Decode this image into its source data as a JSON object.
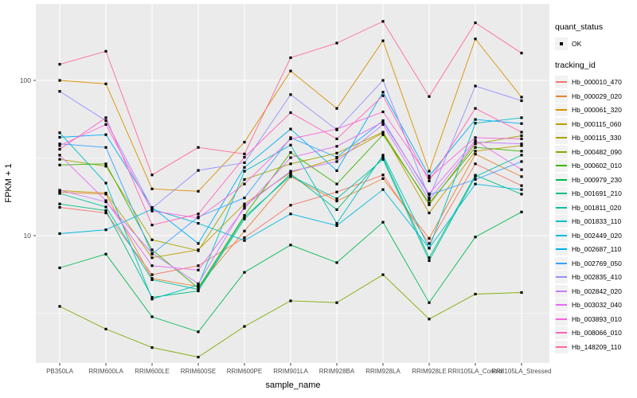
{
  "chart_data": {
    "type": "line",
    "title": "",
    "xlabel": "sample_name",
    "ylabel": "FPKM + 1",
    "y_scale": "log10",
    "y_ticks": [
      10,
      100
    ],
    "y_minor_ticks": [
      3.162,
      31.62,
      316.2
    ],
    "ylim": [
      1.4,
      320
    ],
    "grid": "on",
    "legend_position": "right",
    "x_categories": [
      "PB350LA",
      "RRIM600LA",
      "RRIM600LE",
      "RRIM600SE",
      "RRIM600PE",
      "RRIM901LA",
      "RRIM928BA",
      "RRIM928LA",
      "RRIM928LE",
      "RRII105LA_Control",
      "RRII105LA_Stressed"
    ],
    "point_marker": "black-square",
    "legend": {
      "quant_status_title": "quant_status",
      "quant_status_items": [
        {
          "label": "OK",
          "marker": "point",
          "color": "#000000"
        }
      ],
      "tracking_title": "tracking_id"
    },
    "series": [
      {
        "name": "Hb_000010_470",
        "color": "#F8766D",
        "values": [
          15.2,
          14.0,
          5.6,
          6.4,
          9.7,
          15.7,
          19.1,
          24.6,
          8.9,
          29.0,
          21.0
        ]
      },
      {
        "name": "Hb_000029_020",
        "color": "#EA8331",
        "values": [
          19.0,
          18.5,
          5.3,
          4.7,
          10.7,
          24.0,
          16.7,
          23.3,
          9.6,
          33.5,
          24.0
        ]
      },
      {
        "name": "Hb_000061_320",
        "color": "#D89000",
        "values": [
          100,
          95,
          20,
          19.3,
          40,
          115,
          66,
          180,
          26,
          185,
          78
        ]
      },
      {
        "name": "Hb_000115_060",
        "color": "#C09B00",
        "values": [
          19.5,
          18.8,
          7.2,
          8.1,
          16.0,
          25.5,
          31.5,
          46.0,
          14.0,
          35.0,
          38.0
        ]
      },
      {
        "name": "Hb_000115_330",
        "color": "#A3A500",
        "values": [
          31.0,
          28.0,
          9.4,
          8.0,
          23.0,
          29.0,
          34.0,
          46.4,
          15.8,
          39.0,
          44.0
        ]
      },
      {
        "name": "Hb_000482_090",
        "color": "#7CAE00",
        "values": [
          3.5,
          2.5,
          1.9,
          1.65,
          2.6,
          3.8,
          3.7,
          5.6,
          2.9,
          4.2,
          4.3
        ]
      },
      {
        "name": "Hb_000602_010",
        "color": "#39B600",
        "values": [
          28.5,
          29.0,
          8.1,
          4.6,
          13.5,
          34.3,
          21.5,
          44.7,
          16.2,
          37.0,
          35.0
        ]
      },
      {
        "name": "Hb_000979_230",
        "color": "#00BB4E",
        "values": [
          6.2,
          7.6,
          3.0,
          2.4,
          5.8,
          8.7,
          6.7,
          12.2,
          3.7,
          9.8,
          14.2
        ]
      },
      {
        "name": "Hb_001691_210",
        "color": "#00BF7D",
        "values": [
          16.0,
          14.5,
          4.0,
          4.4,
          12.8,
          25.0,
          14.7,
          32.0,
          7.2,
          24.5,
          18.5
        ]
      },
      {
        "name": "Hb_001811_020",
        "color": "#00C1A3",
        "values": [
          18.7,
          15.3,
          5.2,
          4.5,
          13.2,
          24.3,
          17.3,
          31.0,
          6.9,
          24.0,
          33.0
        ]
      },
      {
        "name": "Hb_001833_110",
        "color": "#00BFC4",
        "values": [
          46.0,
          21.8,
          3.9,
          4.8,
          26.0,
          38.3,
          12.0,
          33.0,
          8.3,
          53.0,
          57.5
        ]
      },
      {
        "name": "Hb_002449_020",
        "color": "#00BAE0",
        "values": [
          10.3,
          10.9,
          14.8,
          12.0,
          9.3,
          13.8,
          11.6,
          19.8,
          8.3,
          21.5,
          19.8
        ]
      },
      {
        "name": "Hb_002687_110",
        "color": "#00B0F6",
        "values": [
          43.0,
          44.7,
          15.2,
          8.9,
          27.5,
          48.6,
          26.2,
          84.0,
          24.2,
          56.0,
          52.7
        ]
      },
      {
        "name": "Hb_002769_050",
        "color": "#35A2FF",
        "values": [
          39.0,
          37.0,
          7.6,
          13.2,
          17.5,
          42.8,
          32.0,
          55.0,
          18.3,
          23.0,
          30.0
        ]
      },
      {
        "name": "Hb_002835_410",
        "color": "#9590FF",
        "values": [
          85.0,
          55.0,
          15.0,
          26.3,
          29.5,
          81.0,
          48.0,
          100.0,
          17.5,
          92.0,
          74.0
        ]
      },
      {
        "name": "Hb_002842_020",
        "color": "#C77CFF",
        "values": [
          19.6,
          16.5,
          7.7,
          4.9,
          15.5,
          26.0,
          30.0,
          52.0,
          17.0,
          40.0,
          39.0
        ]
      },
      {
        "name": "Hb_003032_040",
        "color": "#E76BF3",
        "values": [
          33.0,
          16.8,
          6.4,
          6.0,
          15.0,
          31.8,
          37.6,
          54.0,
          18.6,
          41.0,
          26.6
        ]
      },
      {
        "name": "Hb_003893_010",
        "color": "#FA62DB",
        "values": [
          38.0,
          52.0,
          14.4,
          13.0,
          21.5,
          42.0,
          48.6,
          62.7,
          23.5,
          42.8,
          42.0
        ]
      },
      {
        "name": "Hb_008066_010",
        "color": "#FF62BC",
        "values": [
          36.0,
          57.5,
          11.7,
          13.8,
          32.0,
          62.0,
          42.0,
          79.7,
          22.5,
          66.0,
          46.4
        ]
      },
      {
        "name": "Hb_148209_110",
        "color": "#FF6A98",
        "values": [
          127,
          154,
          24.6,
          37,
          33.6,
          140,
          174,
          240,
          78.7,
          235,
          150
        ]
      }
    ]
  },
  "colors": {
    "panel_bg": "#EBEBEB",
    "grid_major": "#FFFFFF",
    "grid_minor": "#FFFFFF",
    "tick_mark": "#333333",
    "tick_label": "#4D4D4D",
    "axis_title": "#000000",
    "point": "#000000",
    "legend_key_bg": "#F2F2F2",
    "page_bg": "#FFFFFF"
  }
}
